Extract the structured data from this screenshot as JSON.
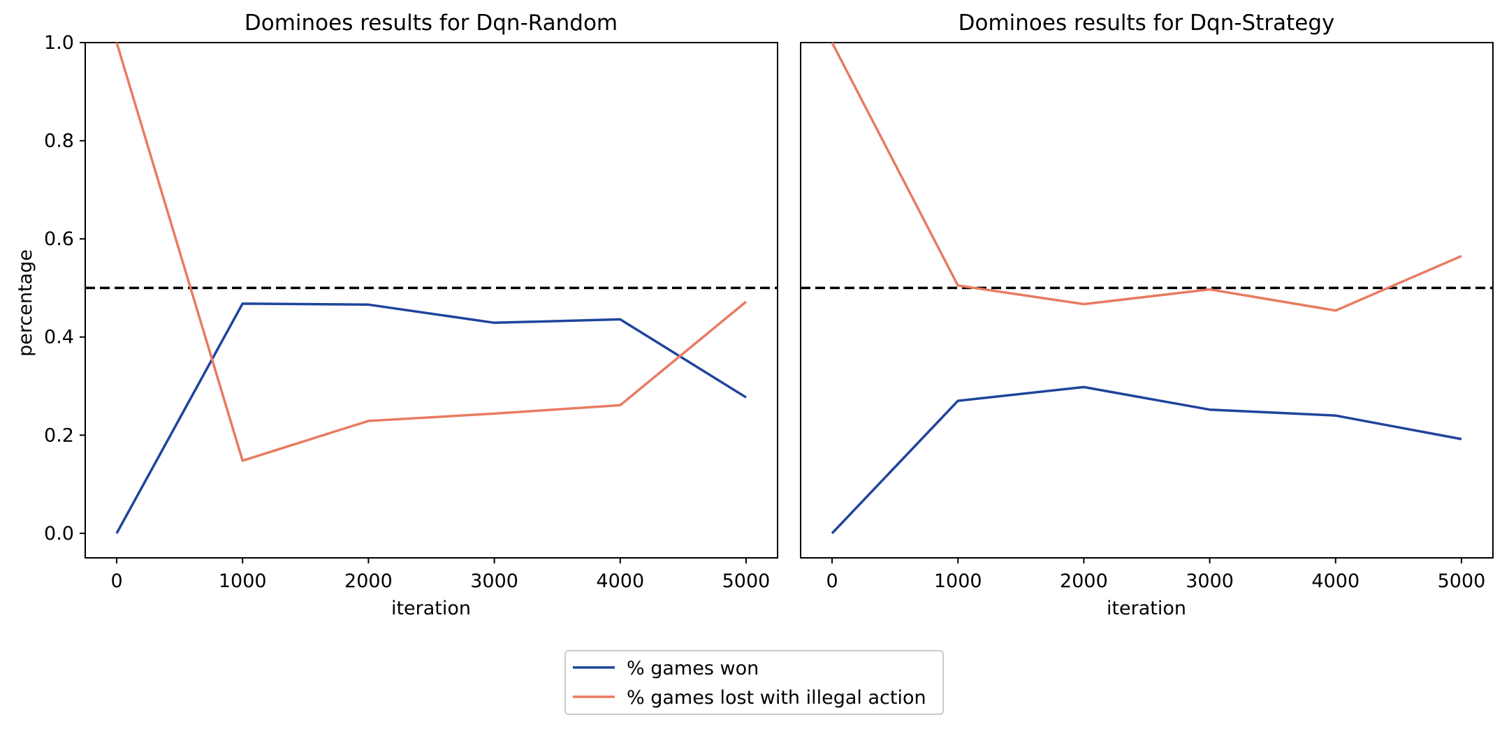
{
  "colors": {
    "won": "#1f449c",
    "illegal": "#e87b61",
    "reference": "#000000"
  },
  "legend": {
    "items": [
      "% games won",
      "% games lost with illegal action"
    ]
  },
  "chart_data": [
    {
      "type": "line",
      "title": "Dominoes results for Dqn-Random",
      "xlabel": "iteration",
      "ylabel": "percentage",
      "x": [
        0,
        1000,
        2000,
        3000,
        4000,
        5000
      ],
      "xticks": [
        "0",
        "1000",
        "2000",
        "3000",
        "4000",
        "5000"
      ],
      "yticks": [
        "0.0",
        "0.2",
        "0.4",
        "0.6",
        "0.8",
        "1.0"
      ],
      "xlim": [
        -250,
        5250
      ],
      "ylim": [
        -0.05,
        1.0
      ],
      "reference_line": 0.5,
      "series": [
        {
          "name": "% games won",
          "values": [
            0.0,
            0.468,
            0.466,
            0.429,
            0.436,
            0.277
          ]
        },
        {
          "name": "% games lost with illegal action",
          "values": [
            1.0,
            0.148,
            0.229,
            0.244,
            0.261,
            0.472
          ]
        }
      ]
    },
    {
      "type": "line",
      "title": "Dominoes results for Dqn-Strategy",
      "xlabel": "iteration",
      "ylabel": "",
      "x": [
        0,
        1000,
        2000,
        3000,
        4000,
        5000
      ],
      "xticks": [
        "0",
        "1000",
        "2000",
        "3000",
        "4000",
        "5000"
      ],
      "yticks": [],
      "xlim": [
        -250,
        5250
      ],
      "ylim": [
        -0.05,
        1.0
      ],
      "reference_line": 0.5,
      "series": [
        {
          "name": "% games won",
          "values": [
            0.0,
            0.27,
            0.298,
            0.252,
            0.24,
            0.192
          ]
        },
        {
          "name": "% games lost with illegal action",
          "values": [
            1.0,
            0.505,
            0.467,
            0.497,
            0.454,
            0.565
          ]
        }
      ]
    }
  ]
}
